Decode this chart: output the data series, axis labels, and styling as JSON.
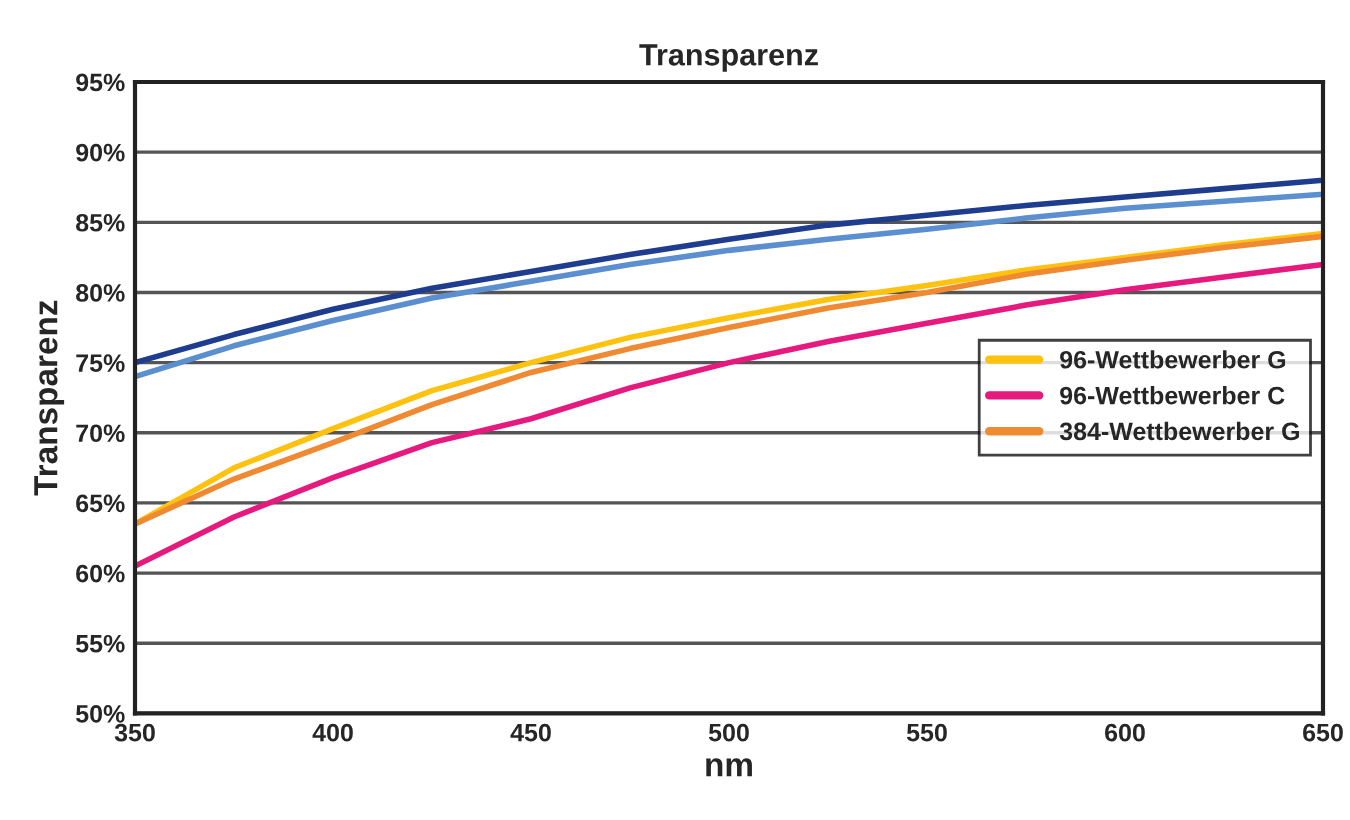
{
  "chart_data": {
    "type": "line",
    "title": "Transparenz",
    "xlabel": "nm",
    "ylabel": "Transparenz",
    "x": [
      350,
      375,
      400,
      425,
      450,
      475,
      500,
      525,
      550,
      575,
      600,
      625,
      650
    ],
    "series": [
      {
        "color": "#1f3d8f",
        "values": [
          75,
          77,
          78.8,
          80.3,
          81.5,
          82.7,
          83.8,
          84.8,
          85.5,
          86.2,
          86.8,
          87.4,
          88
        ]
      },
      {
        "name": "96-Wettbewerber G",
        "color": "#ffc20e",
        "values": [
          63.5,
          67.5,
          70.3,
          73,
          75,
          76.8,
          78.2,
          79.5,
          80.5,
          81.6,
          82.5,
          83.4,
          84.2
        ]
      },
      {
        "name": "96-Wettbewerber C",
        "color": "#e5197e",
        "values": [
          60.5,
          64,
          66.8,
          69.3,
          71,
          73.2,
          75,
          76.5,
          77.8,
          79.1,
          80.2,
          81.1,
          82
        ]
      },
      {
        "color": "#5b8fd0",
        "values": [
          74,
          76.2,
          78,
          79.6,
          80.8,
          82,
          83,
          83.8,
          84.5,
          85.3,
          86,
          86.5,
          87
        ]
      },
      {
        "name": "384-Wettbewerber G",
        "color": "#f08a32",
        "values": [
          63.5,
          66.7,
          69.3,
          72,
          74.3,
          76,
          77.5,
          78.9,
          80,
          81.3,
          82.3,
          83.2,
          84
        ]
      }
    ],
    "xlim": [
      350,
      650
    ],
    "xticks": [
      350,
      400,
      450,
      500,
      550,
      600,
      650
    ],
    "ylim": [
      50,
      95
    ],
    "yticks": [
      {
        "value": 50,
        "label": "50%"
      },
      {
        "value": 55,
        "label": "55%"
      },
      {
        "value": 60,
        "label": "60%"
      },
      {
        "value": 65,
        "label": "65%"
      },
      {
        "value": 70,
        "label": "70%"
      },
      {
        "value": 75,
        "label": "75%"
      },
      {
        "value": 80,
        "label": "80%"
      },
      {
        "value": 85,
        "label": "85%"
      },
      {
        "value": 90,
        "label": "90%"
      },
      {
        "value": 95,
        "label": "95%"
      }
    ],
    "grid": "y",
    "legend": "right",
    "marker": "none",
    "line_style": "solid"
  }
}
